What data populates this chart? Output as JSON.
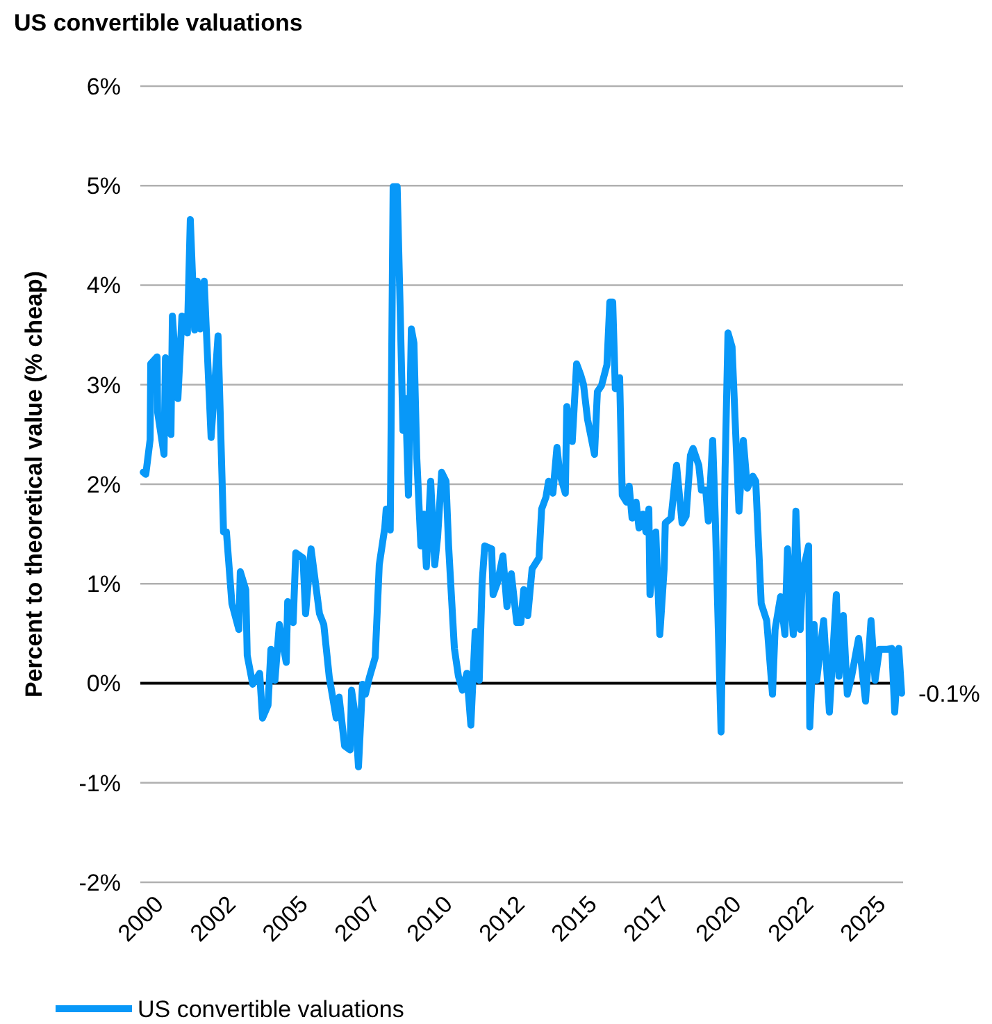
{
  "chart_data": {
    "type": "line",
    "title": "US convertible valuations",
    "ylabel": "Percent to theoretical value (% cheap)",
    "xlim": [
      2000,
      2026.4
    ],
    "xticks": [
      {
        "value": 2000,
        "label": "2000"
      },
      {
        "value": 2002.5,
        "label": "2002"
      },
      {
        "value": 2005,
        "label": "2005"
      },
      {
        "value": 2007.5,
        "label": "2007"
      },
      {
        "value": 2010,
        "label": "2010"
      },
      {
        "value": 2012.5,
        "label": "2012"
      },
      {
        "value": 2015,
        "label": "2015"
      },
      {
        "value": 2017.5,
        "label": "2017"
      },
      {
        "value": 2020,
        "label": "2020"
      },
      {
        "value": 2022.5,
        "label": "2022"
      },
      {
        "value": 2025,
        "label": "2025"
      }
    ],
    "ylim": [
      -2,
      6
    ],
    "yticks": [
      {
        "value": -2,
        "label": "-2%"
      },
      {
        "value": -1,
        "label": "-1%"
      },
      {
        "value": 0,
        "label": "0%"
      },
      {
        "value": 1,
        "label": "1%"
      },
      {
        "value": 2,
        "label": "2%"
      },
      {
        "value": 3,
        "label": "3%"
      },
      {
        "value": 4,
        "label": "4%"
      },
      {
        "value": 5,
        "label": "5%"
      },
      {
        "value": 6,
        "label": "6%"
      }
    ],
    "grid": "y",
    "legend": "bottom",
    "line_style": "solid",
    "ref_lines": [
      {
        "axis": "y",
        "value": 0,
        "color": "#000000"
      }
    ],
    "annotations": [
      {
        "text": "-0.1%",
        "x": 2026.35,
        "y": -0.1
      }
    ],
    "series": [
      {
        "name": "US convertible valuations",
        "color": "#0898f8",
        "x": [
          2000.1,
          2000.19,
          2000.34,
          2000.36,
          2000.58,
          2000.6,
          2000.82,
          2000.87,
          2001.06,
          2001.11,
          2001.3,
          2001.44,
          2001.63,
          2001.73,
          2001.88,
          2001.97,
          2002.07,
          2002.21,
          2002.45,
          2002.69,
          2002.88,
          2002.98,
          2003.17,
          2003.41,
          2003.46,
          2003.65,
          2003.7,
          2003.89,
          2004.13,
          2004.23,
          2004.42,
          2004.52,
          2004.66,
          2004.81,
          2005.05,
          2005.1,
          2005.29,
          2005.38,
          2005.63,
          2005.72,
          2005.91,
          2006.2,
          2006.35,
          2006.54,
          2006.78,
          2006.88,
          2007.07,
          2007.26,
          2007.31,
          2007.45,
          2007.55,
          2007.69,
          2007.79,
          2007.93,
          2008.13,
          2008.27,
          2008.46,
          2008.51,
          2008.65,
          2008.75,
          2008.89,
          2008.99,
          2009.09,
          2009.18,
          2009.28,
          2009.38,
          2009.47,
          2009.57,
          2009.71,
          2009.81,
          2009.9,
          2010.05,
          2010.19,
          2010.29,
          2010.43,
          2010.58,
          2010.67,
          2010.87,
          2011.01,
          2011.15,
          2011.3,
          2011.44,
          2011.59,
          2011.73,
          2011.83,
          2011.92,
          2012.16,
          2012.21,
          2012.36,
          2012.55,
          2012.69,
          2012.84,
          2013.03,
          2013.17,
          2013.27,
          2013.41,
          2013.56,
          2013.8,
          2013.89,
          2014.04,
          2014.13,
          2014.28,
          2014.42,
          2014.52,
          2014.71,
          2014.76,
          2014.95,
          2015.1,
          2015.24,
          2015.34,
          2015.48,
          2015.72,
          2015.82,
          2015.96,
          2016.15,
          2016.25,
          2016.35,
          2016.44,
          2016.59,
          2016.68,
          2016.83,
          2016.92,
          2017.02,
          2017.16,
          2017.26,
          2017.4,
          2017.5,
          2017.6,
          2017.64,
          2017.84,
          2017.98,
          2018.13,
          2018.17,
          2018.37,
          2018.56,
          2018.75,
          2018.89,
          2019.04,
          2019.13,
          2019.33,
          2019.42,
          2019.57,
          2019.66,
          2019.81,
          2019.9,
          2020.1,
          2020.24,
          2020.34,
          2020.48,
          2020.72,
          2020.87,
          2021.01,
          2021.2,
          2021.3,
          2021.49,
          2021.68,
          2021.88,
          2021.97,
          2022.16,
          2022.31,
          2022.4,
          2022.6,
          2022.69,
          2022.84,
          2022.93,
          2023.13,
          2023.17,
          2023.32,
          2023.41,
          2023.65,
          2023.85,
          2024.09,
          2024.18,
          2024.33,
          2024.47,
          2024.62,
          2024.86,
          2025.1,
          2025.29,
          2025.43,
          2025.58,
          2025.82,
          2026.01,
          2026.11,
          2026.25,
          2026.35
        ],
        "values": [
          2.12,
          2.1,
          2.45,
          3.21,
          3.28,
          2.72,
          2.3,
          3.27,
          2.5,
          3.69,
          2.86,
          3.69,
          3.52,
          4.66,
          3.55,
          4.04,
          3.56,
          4.04,
          2.47,
          3.49,
          1.52,
          1.52,
          0.8,
          0.54,
          1.12,
          0.94,
          0.28,
          -0.01,
          0.1,
          -0.35,
          -0.22,
          0.34,
          0.03,
          0.59,
          0.21,
          0.82,
          0.61,
          1.31,
          1.26,
          0.7,
          1.35,
          0.7,
          0.59,
          0.06,
          -0.35,
          -0.14,
          -0.63,
          -0.67,
          -0.07,
          -0.35,
          -0.84,
          -0.01,
          -0.11,
          0.06,
          0.26,
          1.19,
          1.56,
          1.75,
          1.54,
          4.99,
          4.99,
          3.8,
          2.54,
          2.86,
          1.89,
          3.56,
          3.42,
          2.26,
          1.38,
          1.7,
          1.17,
          2.03,
          1.19,
          1.47,
          2.12,
          2.03,
          1.38,
          0.35,
          0.07,
          -0.07,
          0.1,
          -0.42,
          0.52,
          0.03,
          1.01,
          1.38,
          1.35,
          0.89,
          1.01,
          1.28,
          0.77,
          1.1,
          0.61,
          0.61,
          0.94,
          0.68,
          1.15,
          1.26,
          1.75,
          1.87,
          2.03,
          1.91,
          2.37,
          2.1,
          1.91,
          2.78,
          2.43,
          3.21,
          3.1,
          3.0,
          2.65,
          2.3,
          2.93,
          2.99,
          3.2,
          3.83,
          3.83,
          2.96,
          3.07,
          1.89,
          1.82,
          1.98,
          1.66,
          1.82,
          1.56,
          1.7,
          1.52,
          1.75,
          0.89,
          1.52,
          0.49,
          1.15,
          1.61,
          1.66,
          2.19,
          1.61,
          1.68,
          2.29,
          2.36,
          2.19,
          1.94,
          1.94,
          1.63,
          2.44,
          1.66,
          -0.49,
          2.16,
          3.52,
          3.38,
          1.73,
          2.44,
          1.96,
          2.08,
          2.03,
          0.8,
          0.63,
          -0.11,
          0.54,
          0.87,
          0.49,
          1.35,
          0.49,
          1.73,
          0.54,
          1.12,
          1.38,
          -0.44,
          0.59,
          0.03,
          0.63,
          -0.29,
          0.89,
          0.07,
          0.68,
          -0.11,
          0.07,
          0.45,
          -0.18,
          0.63,
          0.03,
          0.34,
          0.34,
          0.35,
          -0.29,
          0.35,
          -0.1
        ]
      }
    ]
  }
}
